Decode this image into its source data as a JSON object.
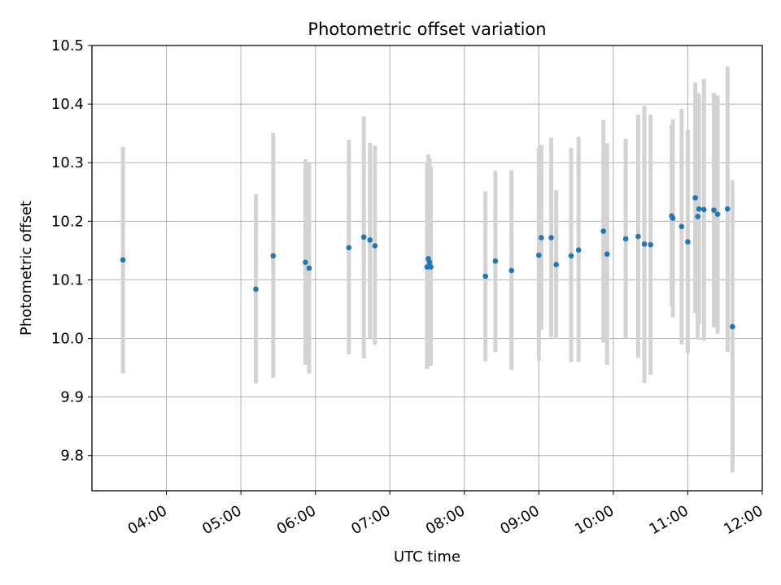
{
  "chart_data": {
    "type": "scatter",
    "title": "Photometric offset variation",
    "xlabel": "UTC time",
    "ylabel": "Photometric offset",
    "xlim": [
      "03:00",
      "12:00"
    ],
    "ylim": [
      9.74,
      10.5
    ],
    "xticks": [
      "04:00",
      "05:00",
      "06:00",
      "07:00",
      "08:00",
      "09:00",
      "10:00",
      "11:00",
      "12:00"
    ],
    "yticks": [
      "9.8",
      "9.9",
      "10.0",
      "10.1",
      "10.2",
      "10.3",
      "10.4",
      "10.5"
    ],
    "grid": true,
    "colors": {
      "point": "#1f77b4",
      "errorbar": "#d3d3d3",
      "grid": "#b0b0b0"
    },
    "points": [
      {
        "t": "03:25",
        "y": 10.134,
        "low": 9.94,
        "high": 10.327
      },
      {
        "t": "05:12",
        "y": 10.084,
        "low": 9.923,
        "high": 10.246
      },
      {
        "t": "05:26",
        "y": 10.141,
        "low": 9.933,
        "high": 10.351
      },
      {
        "t": "05:52",
        "y": 10.13,
        "low": 9.955,
        "high": 10.306
      },
      {
        "t": "05:55",
        "y": 10.12,
        "low": 9.94,
        "high": 10.299
      },
      {
        "t": "06:27",
        "y": 10.155,
        "low": 9.973,
        "high": 10.339
      },
      {
        "t": "06:39",
        "y": 10.173,
        "low": 9.966,
        "high": 10.379
      },
      {
        "t": "06:44",
        "y": 10.168,
        "low": 10.0,
        "high": 10.334
      },
      {
        "t": "06:48",
        "y": 10.158,
        "low": 9.989,
        "high": 10.329
      },
      {
        "t": "07:30",
        "y": 10.122,
        "low": 9.948,
        "high": 10.3
      },
      {
        "t": "07:31",
        "y": 10.136,
        "low": 9.96,
        "high": 10.314
      },
      {
        "t": "07:32",
        "y": 10.13,
        "low": 9.953,
        "high": 10.308
      },
      {
        "t": "07:33",
        "y": 10.122,
        "low": 9.954,
        "high": 10.294
      },
      {
        "t": "08:17",
        "y": 10.106,
        "low": 9.961,
        "high": 10.251
      },
      {
        "t": "08:25",
        "y": 10.132,
        "low": 9.977,
        "high": 10.286
      },
      {
        "t": "08:38",
        "y": 10.116,
        "low": 9.946,
        "high": 10.287
      },
      {
        "t": "09:00",
        "y": 10.142,
        "low": 9.962,
        "high": 10.325
      },
      {
        "t": "09:02",
        "y": 10.172,
        "low": 10.015,
        "high": 10.33
      },
      {
        "t": "09:10",
        "y": 10.172,
        "low": 10.002,
        "high": 10.343
      },
      {
        "t": "09:14",
        "y": 10.126,
        "low": 9.999,
        "high": 10.253
      },
      {
        "t": "09:26",
        "y": 10.141,
        "low": 9.96,
        "high": 10.325
      },
      {
        "t": "09:32",
        "y": 10.151,
        "low": 9.96,
        "high": 10.344
      },
      {
        "t": "09:52",
        "y": 10.183,
        "low": 9.993,
        "high": 10.373
      },
      {
        "t": "09:55",
        "y": 10.144,
        "low": 9.955,
        "high": 10.333
      },
      {
        "t": "10:10",
        "y": 10.17,
        "low": 10.0,
        "high": 10.341
      },
      {
        "t": "10:20",
        "y": 10.174,
        "low": 9.967,
        "high": 10.382
      },
      {
        "t": "10:25",
        "y": 10.161,
        "low": 9.924,
        "high": 10.397
      },
      {
        "t": "10:30",
        "y": 10.16,
        "low": 9.938,
        "high": 10.382
      },
      {
        "t": "10:47",
        "y": 10.209,
        "low": 10.055,
        "high": 10.365
      },
      {
        "t": "10:48",
        "y": 10.205,
        "low": 10.036,
        "high": 10.374
      },
      {
        "t": "10:55",
        "y": 10.191,
        "low": 9.99,
        "high": 10.392
      },
      {
        "t": "11:00",
        "y": 10.165,
        "low": 9.975,
        "high": 10.356
      },
      {
        "t": "11:06",
        "y": 10.24,
        "low": 10.043,
        "high": 10.437
      },
      {
        "t": "11:08",
        "y": 10.208,
        "low": 9.998,
        "high": 10.419
      },
      {
        "t": "11:09",
        "y": 10.221,
        "low": 10.025,
        "high": 10.416
      },
      {
        "t": "11:13",
        "y": 10.22,
        "low": 9.996,
        "high": 10.443
      },
      {
        "t": "11:21",
        "y": 10.219,
        "low": 10.019,
        "high": 10.419
      },
      {
        "t": "11:24",
        "y": 10.212,
        "low": 10.008,
        "high": 10.415
      },
      {
        "t": "11:32",
        "y": 10.221,
        "low": 9.977,
        "high": 10.464
      },
      {
        "t": "11:36",
        "y": 10.02,
        "low": 9.771,
        "high": 10.27
      }
    ]
  }
}
